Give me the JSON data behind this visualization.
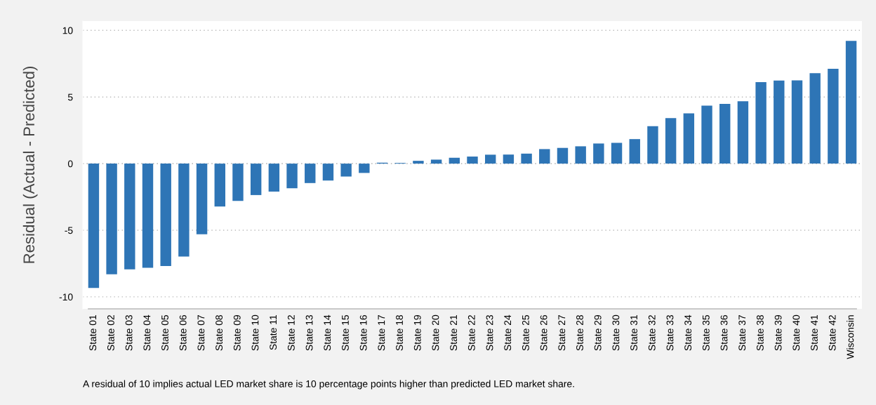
{
  "chart_data": {
    "type": "bar",
    "ylabel": "Residual (Actual - Predicted)",
    "categories": [
      "State 01",
      "State 02",
      "State 03",
      "State 04",
      "State 05",
      "State 06",
      "State 07",
      "State 08",
      "State 09",
      "State 10",
      "State 11",
      "State 12",
      "State 13",
      "State 14",
      "State 15",
      "State 16",
      "State 17",
      "State 18",
      "State 19",
      "State 20",
      "State 21",
      "State 22",
      "State 23",
      "State 24",
      "State 25",
      "State 26",
      "State 27",
      "State 28",
      "State 29",
      "State 30",
      "State 31",
      "State 32",
      "State 33",
      "State 34",
      "State 35",
      "State 36",
      "State 37",
      "State 38",
      "State 39",
      "State 40",
      "State 41",
      "State 42",
      "Wisconsin"
    ],
    "values": [
      -9.33,
      -8.31,
      -7.94,
      -7.82,
      -7.69,
      -6.97,
      -5.3,
      -3.22,
      -2.8,
      -2.36,
      -2.1,
      -1.85,
      -1.46,
      -1.27,
      -0.97,
      -0.7,
      0.07,
      0.05,
      0.21,
      0.3,
      0.44,
      0.53,
      0.67,
      0.68,
      0.75,
      1.09,
      1.18,
      1.3,
      1.51,
      1.56,
      1.84,
      2.81,
      3.42,
      3.77,
      4.35,
      4.49,
      4.68,
      6.12,
      6.23,
      6.25,
      6.79,
      7.12,
      9.21
    ],
    "color": "#2e75b6",
    "ylim": [
      -10.9,
      10.7
    ],
    "yticks": [
      -10,
      -5,
      0,
      5,
      10
    ],
    "grid": "y",
    "annotations": [
      "A residual of 10 implies actual LED market share is 10 percentage points higher than predicted LED market share."
    ]
  }
}
